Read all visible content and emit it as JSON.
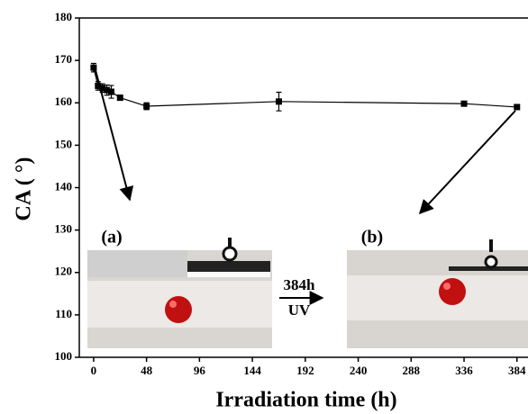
{
  "chart_data": {
    "type": "line",
    "y_label": "CA ( °)",
    "x_label": "Irradiation time (h)",
    "x": [
      0,
      4,
      8,
      12,
      16,
      24,
      48,
      168,
      336,
      384
    ],
    "values": [
      168.3,
      164,
      163.5,
      163,
      162.6,
      161.2,
      159.2,
      160.3,
      159.8,
      159
    ],
    "errors": [
      1,
      1,
      1,
      1.2,
      1.5,
      0.6,
      0.8,
      2.2,
      0.5,
      0.3
    ],
    "color": "#000000",
    "xlim": [
      -13,
      394
    ],
    "ylim": [
      100,
      180
    ],
    "xticks": [
      0,
      48,
      96,
      144,
      192,
      240,
      288,
      336,
      384
    ],
    "yticks": [
      100,
      110,
      120,
      130,
      140,
      150,
      160,
      170,
      180
    ],
    "annotations": {
      "a": "(a)",
      "b": "(b)",
      "time": "384h",
      "uv": "UV"
    }
  }
}
